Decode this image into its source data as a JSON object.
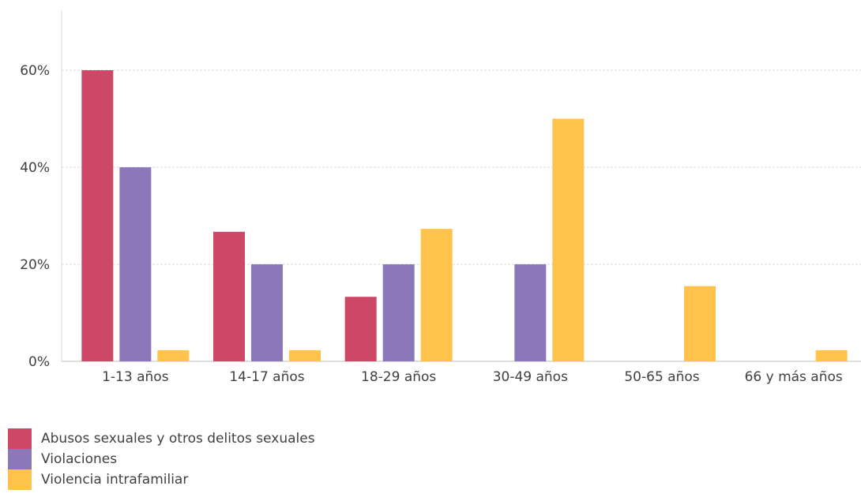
{
  "chart_data": {
    "type": "bar",
    "categories": [
      "1-13 años",
      "14-17 años",
      "18-29 años",
      "30-49 años",
      "50-65 años",
      "66 y más años"
    ],
    "series": [
      {
        "name": "Abusos sexuales y otros delitos sexuales",
        "color": "#cc4866",
        "values": [
          60,
          26.7,
          13.3,
          0,
          0,
          0
        ]
      },
      {
        "name": "Violaciones",
        "color": "#8c78b8",
        "values": [
          40,
          20,
          20,
          20,
          0,
          0
        ]
      },
      {
        "name": "Violencia intrafamiliar",
        "color": "#ffc24a",
        "values": [
          2.3,
          2.3,
          27.3,
          50,
          15.5,
          2.3
        ]
      }
    ],
    "yticks": [
      "0%",
      "20%",
      "40%",
      "60%"
    ],
    "ylim": [
      0,
      70
    ],
    "grid": true,
    "legend_position": "bottom-left"
  }
}
